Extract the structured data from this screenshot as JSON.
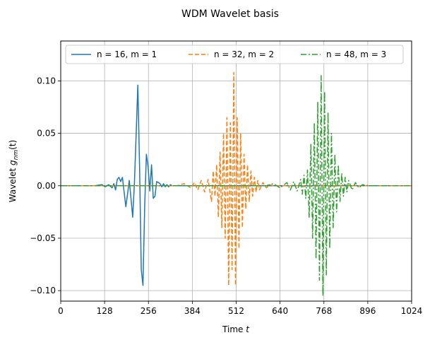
{
  "chart_data": {
    "type": "line",
    "title": "WDM Wavelet basis",
    "xlabel": "Time",
    "xlabel_symbol": "t",
    "ylabel": "Wavelet",
    "ylabel_symbol": "g",
    "ylabel_subscript": "nm",
    "ylabel_arg": "(t)",
    "xlim": [
      0,
      1024
    ],
    "ylim": [
      -0.11,
      0.138
    ],
    "x_ticks": [
      0,
      128,
      256,
      384,
      512,
      640,
      768,
      896,
      1024
    ],
    "x_tick_labels": [
      "0",
      "128",
      "256",
      "384",
      "512",
      "640",
      "768",
      "896",
      "1024"
    ],
    "y_ticks": [
      -0.1,
      -0.05,
      0.0,
      0.05,
      0.1
    ],
    "y_tick_labels": [
      "−0.10",
      "−0.05",
      "0.00",
      "0.05",
      "0.10"
    ],
    "grid": true,
    "legend": {
      "placement": "top",
      "columns": 3
    },
    "series": [
      {
        "name": "n = 16, m = 1",
        "color": "#1f77b4",
        "dash": "solid",
        "x": [
          0,
          100,
          120,
          130,
          140,
          150,
          155,
          160,
          165,
          170,
          175,
          180,
          185,
          190,
          195,
          200,
          205,
          210,
          215,
          220,
          225,
          230,
          235,
          240,
          245,
          250,
          255,
          260,
          265,
          270,
          275,
          280,
          285,
          290,
          295,
          300,
          305,
          310,
          315,
          320,
          325,
          330,
          335,
          340,
          350,
          360,
          380,
          1024
        ],
        "y": [
          0,
          0,
          0.001,
          -0.001,
          0.001,
          -0.002,
          0.002,
          -0.004,
          0.006,
          0.008,
          0.004,
          0.008,
          -0.006,
          -0.02,
          -0.008,
          0.005,
          -0.012,
          -0.03,
          0.002,
          0.048,
          0.096,
          0.02,
          -0.08,
          -0.095,
          -0.02,
          0.03,
          0.018,
          -0.005,
          0.02,
          -0.012,
          -0.01,
          0.004,
          0.003,
          0.002,
          -0.001,
          0.002,
          -0.001,
          0.001,
          -0.001,
          0.001,
          0,
          0,
          0,
          0,
          0,
          0,
          0,
          0
        ]
      },
      {
        "name": "n = 32, m = 2",
        "color": "#ff7f0e",
        "dash": "dashed",
        "x": [
          0,
          340,
          360,
          380,
          390,
          400,
          410,
          420,
          430,
          440,
          445,
          450,
          455,
          460,
          465,
          470,
          475,
          480,
          485,
          490,
          495,
          500,
          505,
          510,
          515,
          520,
          525,
          530,
          535,
          540,
          545,
          550,
          555,
          560,
          565,
          570,
          575,
          580,
          590,
          600,
          610,
          620,
          640,
          1024
        ],
        "y": [
          0,
          0,
          0.002,
          -0.002,
          0.003,
          -0.004,
          0.005,
          -0.006,
          0.006,
          -0.015,
          0.014,
          -0.01,
          0.02,
          -0.03,
          0.032,
          -0.04,
          0.05,
          -0.05,
          0.065,
          -0.095,
          0.06,
          -0.08,
          0.108,
          -0.095,
          0.065,
          -0.06,
          0.05,
          -0.04,
          0.03,
          -0.022,
          0.02,
          -0.015,
          0.014,
          -0.01,
          0.008,
          -0.006,
          0.005,
          -0.004,
          0.003,
          -0.002,
          0.001,
          0,
          0,
          0
        ]
      },
      {
        "name": "n = 48, m = 3",
        "color": "#2ca02c",
        "dash": "dashdot",
        "x": [
          0,
          600,
          620,
          640,
          660,
          670,
          680,
          690,
          700,
          705,
          710,
          715,
          720,
          725,
          730,
          735,
          740,
          745,
          750,
          755,
          760,
          765,
          770,
          775,
          780,
          785,
          790,
          795,
          800,
          805,
          810,
          815,
          820,
          825,
          830,
          835,
          840,
          850,
          860,
          870,
          880,
          900,
          1024
        ],
        "y": [
          0,
          0,
          0.002,
          -0.002,
          0.003,
          -0.004,
          0.004,
          -0.005,
          0.006,
          -0.008,
          0.01,
          -0.012,
          0.015,
          -0.03,
          0.04,
          -0.05,
          0.06,
          -0.07,
          0.08,
          -0.09,
          0.105,
          -0.105,
          0.09,
          -0.085,
          0.07,
          -0.06,
          0.05,
          -0.04,
          0.03,
          -0.025,
          0.02,
          -0.015,
          0.012,
          -0.01,
          0.008,
          -0.006,
          0.005,
          -0.004,
          0.003,
          -0.002,
          0.001,
          0,
          0
        ]
      }
    ]
  }
}
